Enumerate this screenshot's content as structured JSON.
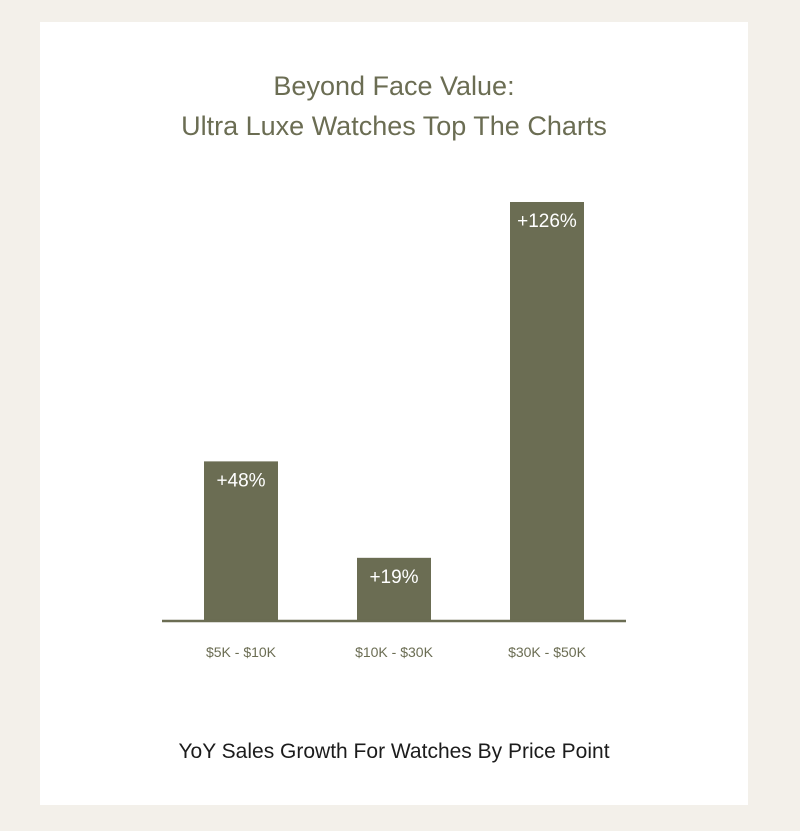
{
  "chart_data": {
    "type": "bar",
    "title": "Beyond Face Value:",
    "subtitle": "Ultra Luxe Watches Top The Charts",
    "caption": "YoY Sales Growth For Watches By Price Point",
    "categories": [
      "$5K - $10K",
      "$10K - $30K",
      "$30K - $50K"
    ],
    "values": [
      48,
      19,
      126
    ],
    "data_labels": [
      "+48%",
      "+19%",
      "+126%"
    ],
    "ylim": [
      0,
      126
    ],
    "grid": false,
    "colors": {
      "bar": "#6b6d53",
      "axis": "#6b6d53",
      "title": "#6b6d53",
      "tick_label": "#6b6d53",
      "data_label": "#ffffff",
      "caption": "#1c1c1c",
      "page_background": "#f3f0ea",
      "card_background": "#ffffff"
    }
  }
}
